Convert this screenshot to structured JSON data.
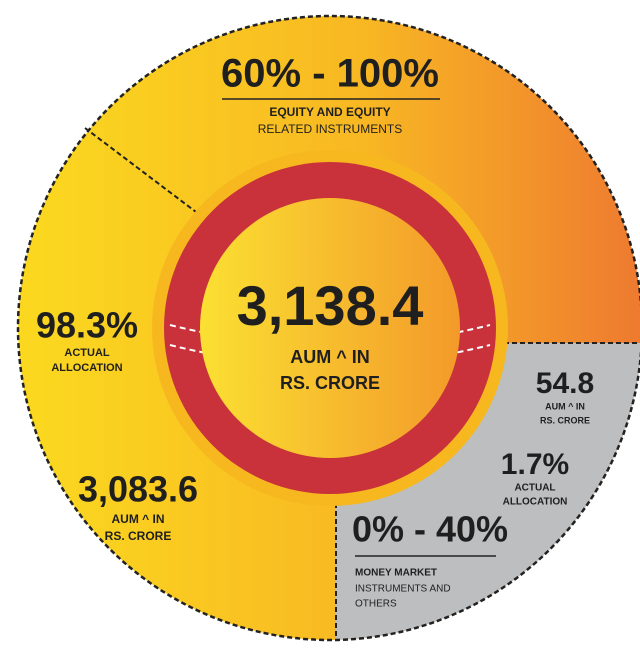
{
  "center": {
    "value": "3,138.4",
    "label": [
      "AUM ^ IN",
      "RS. CRORE"
    ]
  },
  "equity": {
    "range": "60% - 100%",
    "name": [
      "EQUITY AND EQUITY",
      "RELATED INSTRUMENTS"
    ],
    "allocation": "98.3%",
    "allocation_label": [
      "ACTUAL",
      "ALLOCATION"
    ],
    "aum": "3,083.6",
    "aum_label": [
      "AUM ^ IN",
      "RS. CRORE"
    ]
  },
  "money_market": {
    "range": "0% - 40%",
    "name": [
      "MONEY MARKET",
      "INSTRUMENTS AND",
      "OTHERS"
    ],
    "allocation": "1.7%",
    "allocation_label": [
      "ACTUAL",
      "ALLOCATION"
    ],
    "aum": "54.8",
    "aum_label": [
      "AUM ^ IN",
      "RS. CRORE"
    ]
  }
}
